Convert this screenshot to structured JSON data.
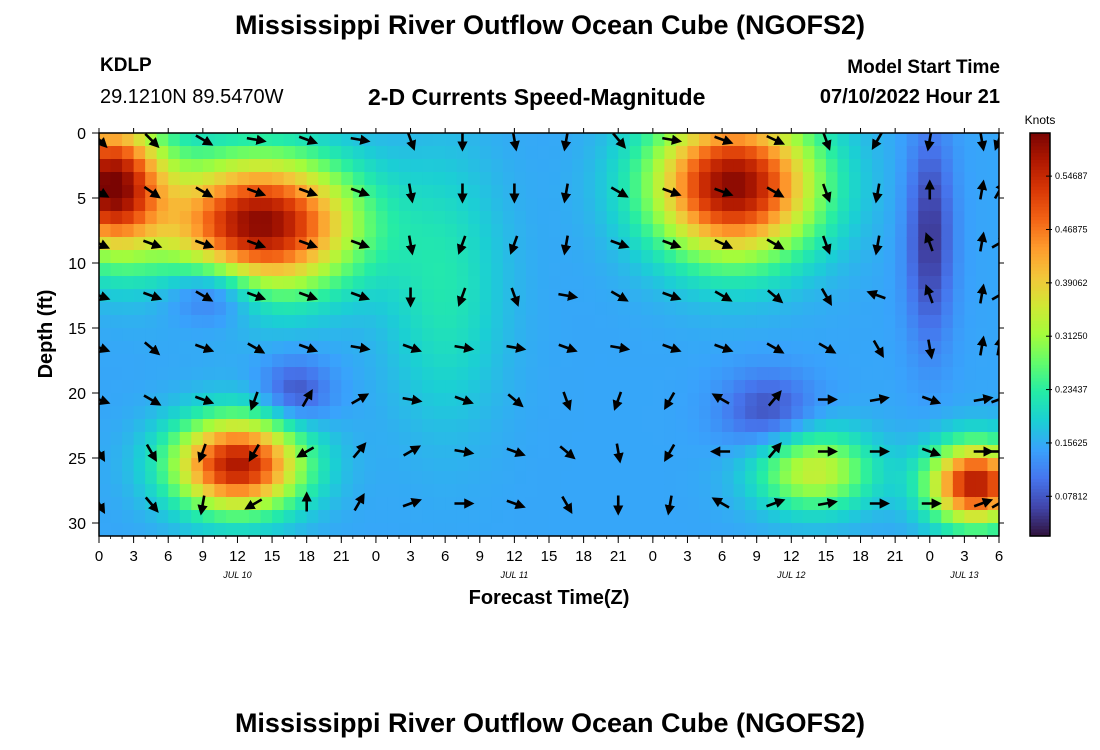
{
  "title": "Mississippi River Outflow Ocean Cube (NGOFS2)",
  "station": {
    "id": "KDLP",
    "coords": "29.1210N  89.5470W"
  },
  "model": {
    "start_label": "Model Start Time",
    "start_value": "07/10/2022 Hour 21"
  },
  "chart_data": {
    "type": "heatmap",
    "subtitle": "2-D Currents Speed-Magnitude",
    "xlabel": "Forecast Time(Z)",
    "ylabel": "Depth (ft)",
    "x_range_hours": [
      0,
      78
    ],
    "y_range_ft": [
      0,
      31
    ],
    "x_ticks": [
      {
        "h": 0,
        "label": "0"
      },
      {
        "h": 3,
        "label": "3"
      },
      {
        "h": 6,
        "label": "6"
      },
      {
        "h": 9,
        "label": "9"
      },
      {
        "h": 12,
        "label": "12"
      },
      {
        "h": 15,
        "label": "15"
      },
      {
        "h": 18,
        "label": "18"
      },
      {
        "h": 21,
        "label": "21"
      },
      {
        "h": 24,
        "label": "0"
      },
      {
        "h": 27,
        "label": "3"
      },
      {
        "h": 30,
        "label": "6"
      },
      {
        "h": 33,
        "label": "9"
      },
      {
        "h": 36,
        "label": "12"
      },
      {
        "h": 39,
        "label": "15"
      },
      {
        "h": 42,
        "label": "18"
      },
      {
        "h": 45,
        "label": "21"
      },
      {
        "h": 48,
        "label": "0"
      },
      {
        "h": 51,
        "label": "3"
      },
      {
        "h": 54,
        "label": "6"
      },
      {
        "h": 57,
        "label": "9"
      },
      {
        "h": 60,
        "label": "12"
      },
      {
        "h": 63,
        "label": "15"
      },
      {
        "h": 66,
        "label": "18"
      },
      {
        "h": 69,
        "label": "21"
      },
      {
        "h": 72,
        "label": "0"
      },
      {
        "h": 75,
        "label": "3"
      },
      {
        "h": 78,
        "label": "6"
      }
    ],
    "date_labels": [
      {
        "h": 12,
        "label": "JUL 10"
      },
      {
        "h": 36,
        "label": "JUL 11"
      },
      {
        "h": 60,
        "label": "JUL 12"
      },
      {
        "h": 75,
        "label": "JUL 13"
      }
    ],
    "y_ticks": [
      0,
      5,
      10,
      15,
      20,
      25,
      30
    ],
    "colorbar": {
      "unit": "Knots",
      "min": 0.02,
      "max": 0.61,
      "ticks": [
        "0.07812",
        "0.15625",
        "0.23437",
        "0.31250",
        "0.39062",
        "0.46875",
        "0.54687"
      ],
      "colors": [
        "#30123b",
        "#4145ab",
        "#4675ed",
        "#39a2fc",
        "#1bcfd4",
        "#24eca6",
        "#61fc6c",
        "#a4fc3b",
        "#d1e834",
        "#f3c63a",
        "#fe9b2d",
        "#f36315",
        "#d93806",
        "#b11901",
        "#7a0402"
      ]
    },
    "speed_model_knots": {
      "base": 0.15,
      "blobs": [
        {
          "t": 1,
          "d": 4,
          "st": 4.5,
          "sd": 5,
          "amp": 0.45
        },
        {
          "t": 14,
          "d": 7,
          "st": 8,
          "sd": 5,
          "amp": 0.45
        },
        {
          "t": 10,
          "d": 12,
          "st": 4,
          "sd": 2.5,
          "amp": -0.12
        },
        {
          "t": 12,
          "d": 25.5,
          "st": 5.5,
          "sd": 3.5,
          "amp": 0.42
        },
        {
          "t": 55,
          "d": 4,
          "st": 7,
          "sd": 5.5,
          "amp": 0.45
        },
        {
          "t": 72,
          "d": 8,
          "st": 2,
          "sd": 8,
          "amp": -0.1
        },
        {
          "t": 76,
          "d": 27,
          "st": 4,
          "sd": 3,
          "amp": 0.42
        },
        {
          "t": 62,
          "d": 26,
          "st": 5,
          "sd": 3,
          "amp": 0.2
        },
        {
          "t": 58,
          "d": 21.5,
          "st": 4,
          "sd": 3,
          "amp": -0.08
        },
        {
          "t": 17,
          "d": 20,
          "st": 3,
          "sd": 2.5,
          "amp": -0.08
        },
        {
          "t": 30,
          "d": 12,
          "st": 5,
          "sd": 10,
          "amp": 0.07
        }
      ]
    },
    "vectors": {
      "times_h": [
        0,
        4.5,
        9,
        13.5,
        18,
        22.5,
        27,
        31.5,
        36,
        40.5,
        45,
        49.5,
        54,
        58.5,
        63,
        67.5,
        72,
        76.5,
        78
      ],
      "depths_ft": [
        0.5,
        4.5,
        8.5,
        12.5,
        16.5,
        20.5,
        24.5,
        28.5
      ],
      "directions_deg": [
        [
          135,
          135,
          120,
          100,
          110,
          100,
          160,
          180,
          170,
          190,
          140,
          100,
          110,
          115,
          160,
          210,
          190,
          170,
          200
        ],
        [
          120,
          125,
          120,
          110,
          110,
          110,
          170,
          180,
          180,
          190,
          120,
          110,
          110,
          120,
          160,
          190,
          0,
          10,
          30
        ],
        [
          115,
          110,
          110,
          110,
          110,
          110,
          170,
          200,
          200,
          190,
          110,
          110,
          115,
          120,
          160,
          190,
          340,
          10,
          60
        ],
        [
          110,
          110,
          120,
          110,
          110,
          110,
          180,
          200,
          160,
          100,
          120,
          110,
          120,
          130,
          150,
          290,
          340,
          10,
          60
        ],
        [
          110,
          130,
          110,
          120,
          110,
          100,
          110,
          100,
          100,
          110,
          100,
          110,
          110,
          120,
          120,
          150,
          170,
          10,
          10
        ],
        [
          110,
          120,
          110,
          200,
          30,
          60,
          100,
          110,
          130,
          160,
          200,
          210,
          300,
          40,
          90,
          80,
          110,
          80,
          70
        ],
        [
          150,
          150,
          200,
          210,
          240,
          40,
          60,
          100,
          110,
          130,
          170,
          210,
          270,
          40,
          90,
          90,
          110,
          90,
          90
        ],
        [
          150,
          140,
          190,
          240,
          0,
          30,
          70,
          90,
          110,
          150,
          180,
          190,
          300,
          70,
          80,
          90,
          90,
          70,
          60
        ]
      ]
    }
  }
}
